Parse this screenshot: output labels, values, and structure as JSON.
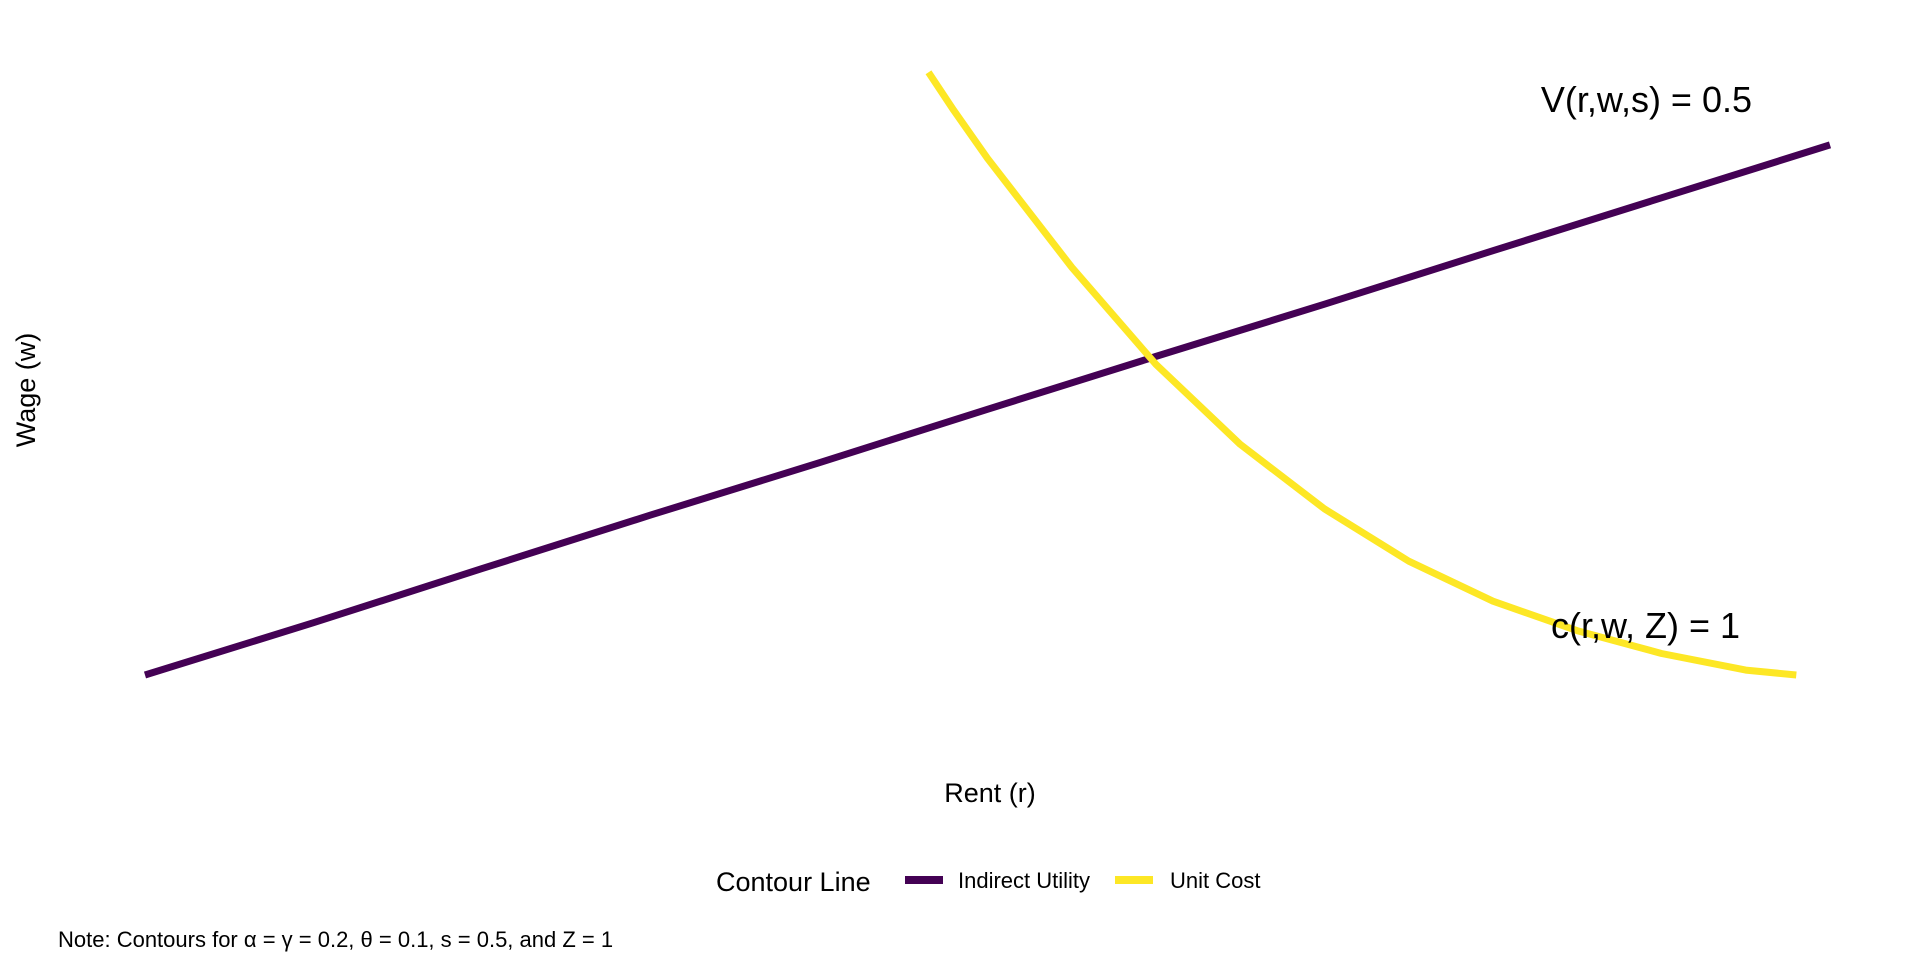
{
  "chart_data": {
    "type": "line",
    "title": "",
    "xlabel": "Rent (r)",
    "ylabel": "Wage (w)",
    "axis_ticks_shown": false,
    "grid": false,
    "xlim": [
      0,
      1
    ],
    "ylim": [
      0,
      1
    ],
    "legend": {
      "title": "Contour Line",
      "position": "bottom"
    },
    "series": [
      {
        "name": "Indirect Utility",
        "color": "#440154",
        "annotation": "V(r,w,s) = 0.5",
        "points": [
          [
            0.0,
            0.0
          ],
          [
            0.1,
            0.085
          ],
          [
            0.2,
            0.173
          ],
          [
            0.3,
            0.26
          ],
          [
            0.4,
            0.345
          ],
          [
            0.5,
            0.432
          ],
          [
            0.6,
            0.518
          ],
          [
            0.7,
            0.603
          ],
          [
            0.8,
            0.69
          ],
          [
            0.9,
            0.776
          ],
          [
            1.0,
            0.862
          ]
        ]
      },
      {
        "name": "Unit Cost",
        "color": "#FDE725",
        "annotation": "c(r,w, Z) = 1",
        "points": [
          [
            0.465,
            0.98
          ],
          [
            0.48,
            0.918
          ],
          [
            0.5,
            0.84
          ],
          [
            0.55,
            0.663
          ],
          [
            0.6,
            0.505
          ],
          [
            0.65,
            0.375
          ],
          [
            0.7,
            0.27
          ],
          [
            0.75,
            0.185
          ],
          [
            0.8,
            0.12
          ],
          [
            0.85,
            0.072
          ],
          [
            0.9,
            0.035
          ],
          [
            0.95,
            0.008
          ],
          [
            0.98,
            0.0
          ]
        ]
      }
    ]
  },
  "note": "Note: Contours for α = γ = 0.2, θ = 0.1, s = 0.5, and Z = 1"
}
